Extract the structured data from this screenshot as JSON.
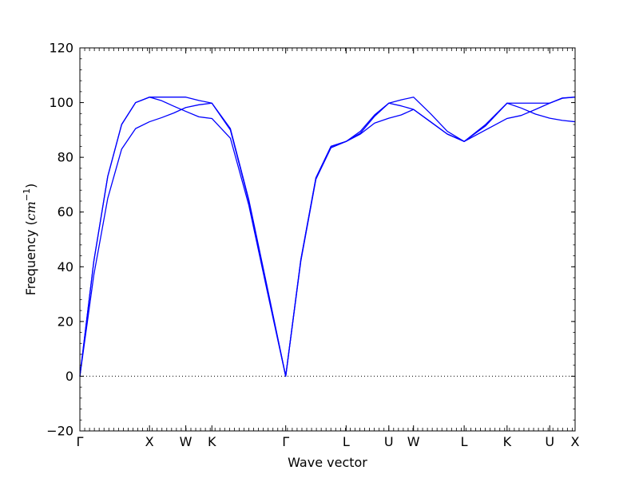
{
  "chart_data": {
    "type": "line",
    "xlabel": "Wave vector",
    "ylabel": {
      "text": "Frequency (",
      "unit": "cm",
      "exponent": "−1",
      "close": ")"
    },
    "ylim": [
      -20,
      120
    ],
    "xlim": [
      0,
      11.573
    ],
    "y_ticks": [
      -20,
      0,
      20,
      40,
      60,
      80,
      100,
      120
    ],
    "y_tick_labels": [
      "−20",
      "0",
      "20",
      "40",
      "60",
      "80",
      "100",
      "120"
    ],
    "minor_y_step": 4,
    "x_ticks": [
      {
        "x": 0,
        "label": "Γ"
      },
      {
        "x": 1.627,
        "label": "X"
      },
      {
        "x": 2.475,
        "label": "W"
      },
      {
        "x": 3.085,
        "label": "K"
      },
      {
        "x": 4.81,
        "label": "Γ"
      },
      {
        "x": 6.222,
        "label": "L"
      },
      {
        "x": 7.22,
        "label": "U"
      },
      {
        "x": 7.797,
        "label": "W"
      },
      {
        "x": 8.981,
        "label": "L"
      },
      {
        "x": 9.983,
        "label": "K"
      },
      {
        "x": 10.98,
        "label": "U"
      },
      {
        "x": 11.573,
        "label": "X"
      }
    ],
    "minor_x_step": 0.1128,
    "zero_line": true,
    "series_color": "#0000ff",
    "series": [
      {
        "x": [
          0,
          0.326,
          0.651,
          0.976,
          1.302,
          1.627,
          1.91,
          2.193,
          2.475,
          2.78,
          3.085,
          3.517,
          3.948,
          4.379,
          4.81,
          5.163,
          5.516,
          5.869,
          6.222,
          6.555,
          6.887,
          7.22,
          7.509,
          7.797,
          8.193,
          8.587,
          8.981,
          9.482,
          9.983,
          10.315,
          10.648,
          10.98,
          11.277,
          11.573
        ],
        "y": [
          0,
          37.0,
          65.0,
          83.0,
          90.5,
          93.0,
          94.5,
          96.2,
          98.2,
          99.2,
          99.8,
          90.0,
          64.0,
          32.0,
          0,
          42.0,
          72.0,
          83.5,
          85.8,
          88.5,
          92.5,
          94.3,
          95.5,
          97.5,
          93.0,
          88.5,
          85.8,
          90.0,
          94.2,
          95.3,
          97.5,
          99.8,
          101.7,
          102.0
        ]
      },
      {
        "x": [
          0,
          0.326,
          0.651,
          0.976,
          1.302,
          1.627,
          1.91,
          2.193,
          2.475,
          2.78,
          3.085,
          3.517,
          3.948,
          4.379,
          4.81,
          5.163,
          5.516,
          5.869,
          6.222,
          6.555,
          6.887,
          7.22,
          7.509,
          7.797,
          8.193,
          8.587,
          8.981,
          9.482,
          9.983,
          10.315,
          10.648,
          10.98,
          11.277,
          11.573
        ],
        "y": [
          0,
          42.0,
          73.0,
          92.0,
          100.0,
          102.0,
          100.7,
          98.7,
          96.8,
          94.8,
          94.2,
          87.0,
          62.5,
          31.0,
          0,
          42.5,
          72.5,
          84.0,
          85.8,
          88.8,
          95.0,
          99.8,
          98.8,
          97.5,
          93.0,
          88.5,
          85.8,
          92.0,
          99.8,
          99.8,
          99.8,
          99.8,
          101.6,
          102.0
        ]
      },
      {
        "x": [
          0,
          0.326,
          0.651,
          0.976,
          1.302,
          1.627,
          1.91,
          2.193,
          2.475,
          2.78,
          3.085,
          3.517,
          3.948,
          4.379,
          4.81,
          5.163,
          5.516,
          5.869,
          6.222,
          6.555,
          6.887,
          7.22,
          7.509,
          7.797,
          8.193,
          8.587,
          8.981,
          9.482,
          9.983,
          10.315,
          10.648,
          10.98,
          11.277,
          11.573
        ],
        "y": [
          0,
          42.0,
          73.0,
          92.0,
          100.0,
          102.0,
          102.0,
          102.0,
          102.0,
          100.8,
          99.8,
          90.5,
          64.5,
          32.5,
          0,
          42.5,
          72.5,
          84.0,
          85.8,
          89.5,
          95.5,
          99.8,
          101.0,
          102.0,
          96.0,
          89.5,
          85.8,
          91.5,
          99.8,
          98.0,
          95.8,
          94.3,
          93.5,
          93.0
        ]
      }
    ]
  }
}
